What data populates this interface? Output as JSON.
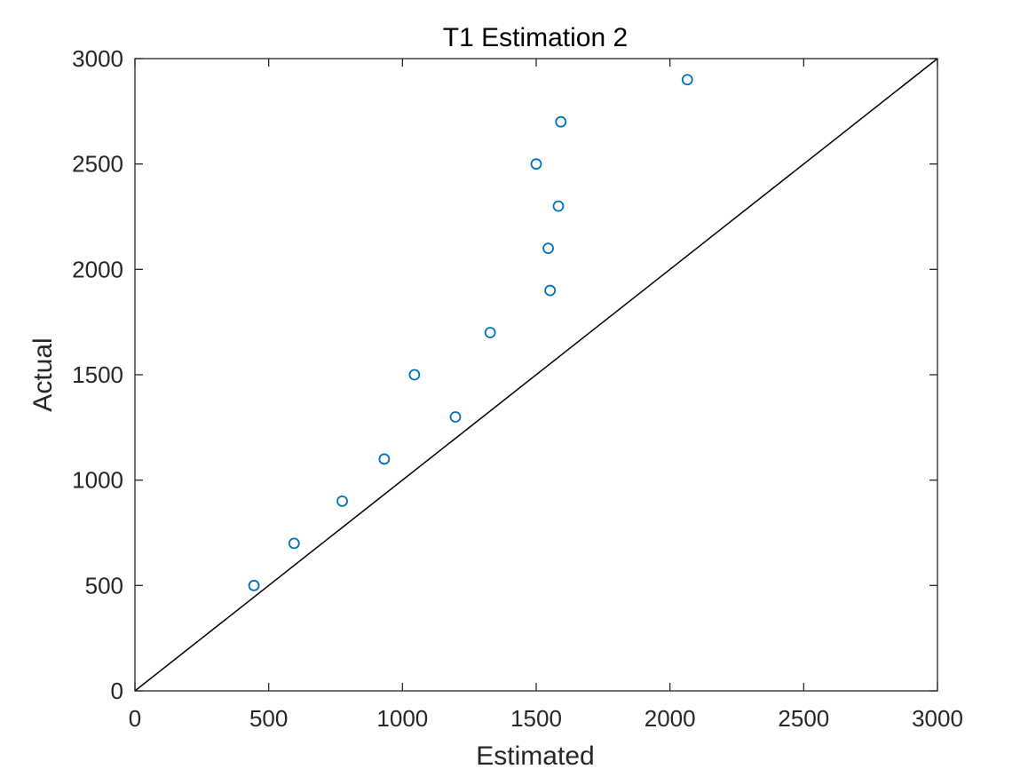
{
  "chart_data": {
    "type": "scatter",
    "title": "T1 Estimation 2",
    "xlabel": "Estimated",
    "ylabel": "Actual",
    "xlim": [
      0,
      3000
    ],
    "ylim": [
      0,
      3000
    ],
    "xticks": [
      0,
      500,
      1000,
      1500,
      2000,
      2500,
      3000
    ],
    "yticks": [
      0,
      500,
      1000,
      1500,
      2000,
      2500,
      3000
    ],
    "grid": false,
    "marker": "open-circle",
    "colors": {
      "marker": "#0072BD",
      "reference_line": "#000000",
      "axes": "#262626"
    },
    "reference_line": {
      "x": [
        0,
        3000
      ],
      "y": [
        0,
        3000
      ]
    },
    "points": [
      {
        "x": 445,
        "y": 500
      },
      {
        "x": 595,
        "y": 700
      },
      {
        "x": 775,
        "y": 900
      },
      {
        "x": 932,
        "y": 1100
      },
      {
        "x": 1045,
        "y": 1500
      },
      {
        "x": 1198,
        "y": 1300
      },
      {
        "x": 1328,
        "y": 1700
      },
      {
        "x": 1552,
        "y": 1900
      },
      {
        "x": 1545,
        "y": 2100
      },
      {
        "x": 1583,
        "y": 2300
      },
      {
        "x": 1500,
        "y": 2500
      },
      {
        "x": 1592,
        "y": 2700
      },
      {
        "x": 2065,
        "y": 2900
      }
    ]
  }
}
